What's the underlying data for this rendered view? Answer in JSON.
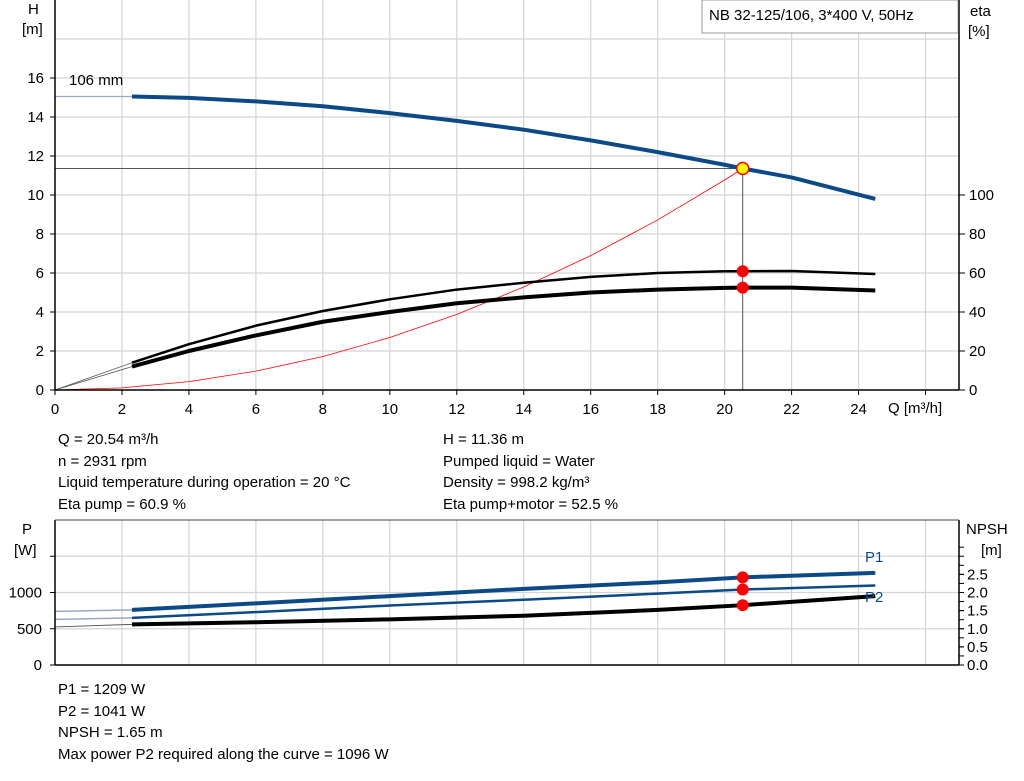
{
  "chart_data": [
    {
      "type": "line",
      "title": "NB 32-125/106, 3*400 V, 50Hz",
      "xlabel": "Q [m³/h]",
      "ylabel_left": [
        "H",
        "[m]"
      ],
      "ylabel_right": [
        "eta",
        "[%]"
      ],
      "xlim": [
        0,
        27
      ],
      "ylim_left": [
        0,
        20
      ],
      "ylim_right": [
        0,
        200
      ],
      "x_ticks": [
        "0",
        "2",
        "4",
        "6",
        "8",
        "10",
        "12",
        "14",
        "16",
        "18",
        "20",
        "22",
        "24"
      ],
      "y_ticks_left": [
        "0",
        "2",
        "4",
        "6",
        "8",
        "10",
        "12",
        "14",
        "16"
      ],
      "y_ticks_right": [
        "0",
        "20",
        "40",
        "60",
        "80",
        "100"
      ],
      "grid": true,
      "curve_label": "106 mm",
      "series": [
        {
          "key": "head",
          "axis": "left",
          "color": "#0b4a86",
          "x": [
            0,
            2.3,
            4,
            6,
            8,
            10,
            12,
            14,
            16,
            18,
            20,
            20.54,
            22,
            24.5
          ],
          "y": [
            15.05,
            15.05,
            14.98,
            14.8,
            14.55,
            14.2,
            13.8,
            13.35,
            12.8,
            12.2,
            11.55,
            11.36,
            10.9,
            9.8
          ]
        },
        {
          "key": "eta_pump",
          "axis": "right",
          "color": "#000000",
          "x": [
            0,
            2.3,
            4,
            6,
            8,
            10,
            12,
            14,
            16,
            18,
            20,
            20.54,
            22,
            24.5
          ],
          "y": [
            0,
            14,
            23.5,
            33,
            40.5,
            46.5,
            51.5,
            55,
            58,
            60,
            60.9,
            60.9,
            61,
            59.5
          ]
        },
        {
          "key": "eta_pump_motor",
          "axis": "right",
          "color": "#000000",
          "x": [
            0,
            2.3,
            4,
            6,
            8,
            10,
            12,
            14,
            16,
            18,
            20,
            20.54,
            22,
            24.5
          ],
          "y": [
            0,
            12,
            20,
            28,
            35,
            40,
            44.5,
            47.5,
            50,
            51.5,
            52.4,
            52.5,
            52.5,
            51
          ]
        },
        {
          "key": "system_curve",
          "axis": "left",
          "color": "#ff0000",
          "x": [
            0,
            2,
            4,
            6,
            8,
            10,
            12,
            14,
            16,
            18,
            20,
            20.54
          ],
          "y": [
            0,
            0.11,
            0.43,
            0.97,
            1.72,
            2.69,
            3.88,
            5.28,
            6.89,
            8.72,
            10.77,
            11.36
          ]
        }
      ],
      "duty_point": {
        "Q": 20.54,
        "H": 11.36,
        "eta_pump": 60.9,
        "eta_pump_motor": 52.5
      }
    },
    {
      "type": "line",
      "xlim": [
        0,
        27
      ],
      "ylabel_left": [
        "P",
        "[W]"
      ],
      "ylabel_right": [
        "NPSH",
        "[m]"
      ],
      "ylim_left": [
        0,
        2000
      ],
      "ylim_right": [
        0,
        4
      ],
      "y_ticks_left": [
        "0",
        "500",
        "1000"
      ],
      "y_ticks_right": [
        "0.0",
        "0.5",
        "1.0",
        "1.5",
        "2.0",
        "2.5"
      ],
      "grid": true,
      "series": [
        {
          "key": "p1",
          "name": "P1",
          "axis": "left",
          "color": "#0b4a86",
          "x": [
            0,
            2.3,
            6,
            10,
            14,
            18,
            20.54,
            24.5
          ],
          "y": [
            740,
            760,
            850,
            950,
            1050,
            1140,
            1209,
            1270
          ]
        },
        {
          "key": "p2",
          "name": "P2",
          "axis": "left",
          "color": "#0b4a86",
          "x": [
            0,
            2.3,
            6,
            10,
            14,
            18,
            20.54,
            24.5
          ],
          "y": [
            630,
            650,
            730,
            820,
            900,
            985,
            1041,
            1096
          ]
        },
        {
          "key": "npsh",
          "axis": "right",
          "color": "#000000",
          "x": [
            0,
            2.3,
            6,
            10,
            14,
            18,
            20.54,
            24.5
          ],
          "y": [
            1.05,
            1.12,
            1.18,
            1.26,
            1.36,
            1.52,
            1.65,
            1.9
          ]
        }
      ],
      "duty_point": {
        "Q": 20.54,
        "P1": 1209,
        "P2": 1041,
        "NPSH": 1.65
      }
    }
  ],
  "info_top": {
    "left": [
      "Q = 20.54 m³/h",
      "n = 2931 rpm",
      "Liquid temperature during operation = 20 °C",
      "Eta pump = 60.9 %"
    ],
    "right": [
      "H = 11.36 m",
      "Pumped liquid = Water",
      "Density = 998.2 kg/m³",
      "Eta pump+motor = 52.5 %"
    ]
  },
  "info_bottom": [
    "P1 = 1209 W",
    "P2 = 1041 W",
    "NPSH = 1.65 m",
    "Max power P2 required along the curve = 1096 W"
  ],
  "colors": {
    "head": "#0b4a86",
    "grid": "#d0d0d0",
    "duty_marker": "#ff0000",
    "duty_head_marker": "#ffff00"
  }
}
